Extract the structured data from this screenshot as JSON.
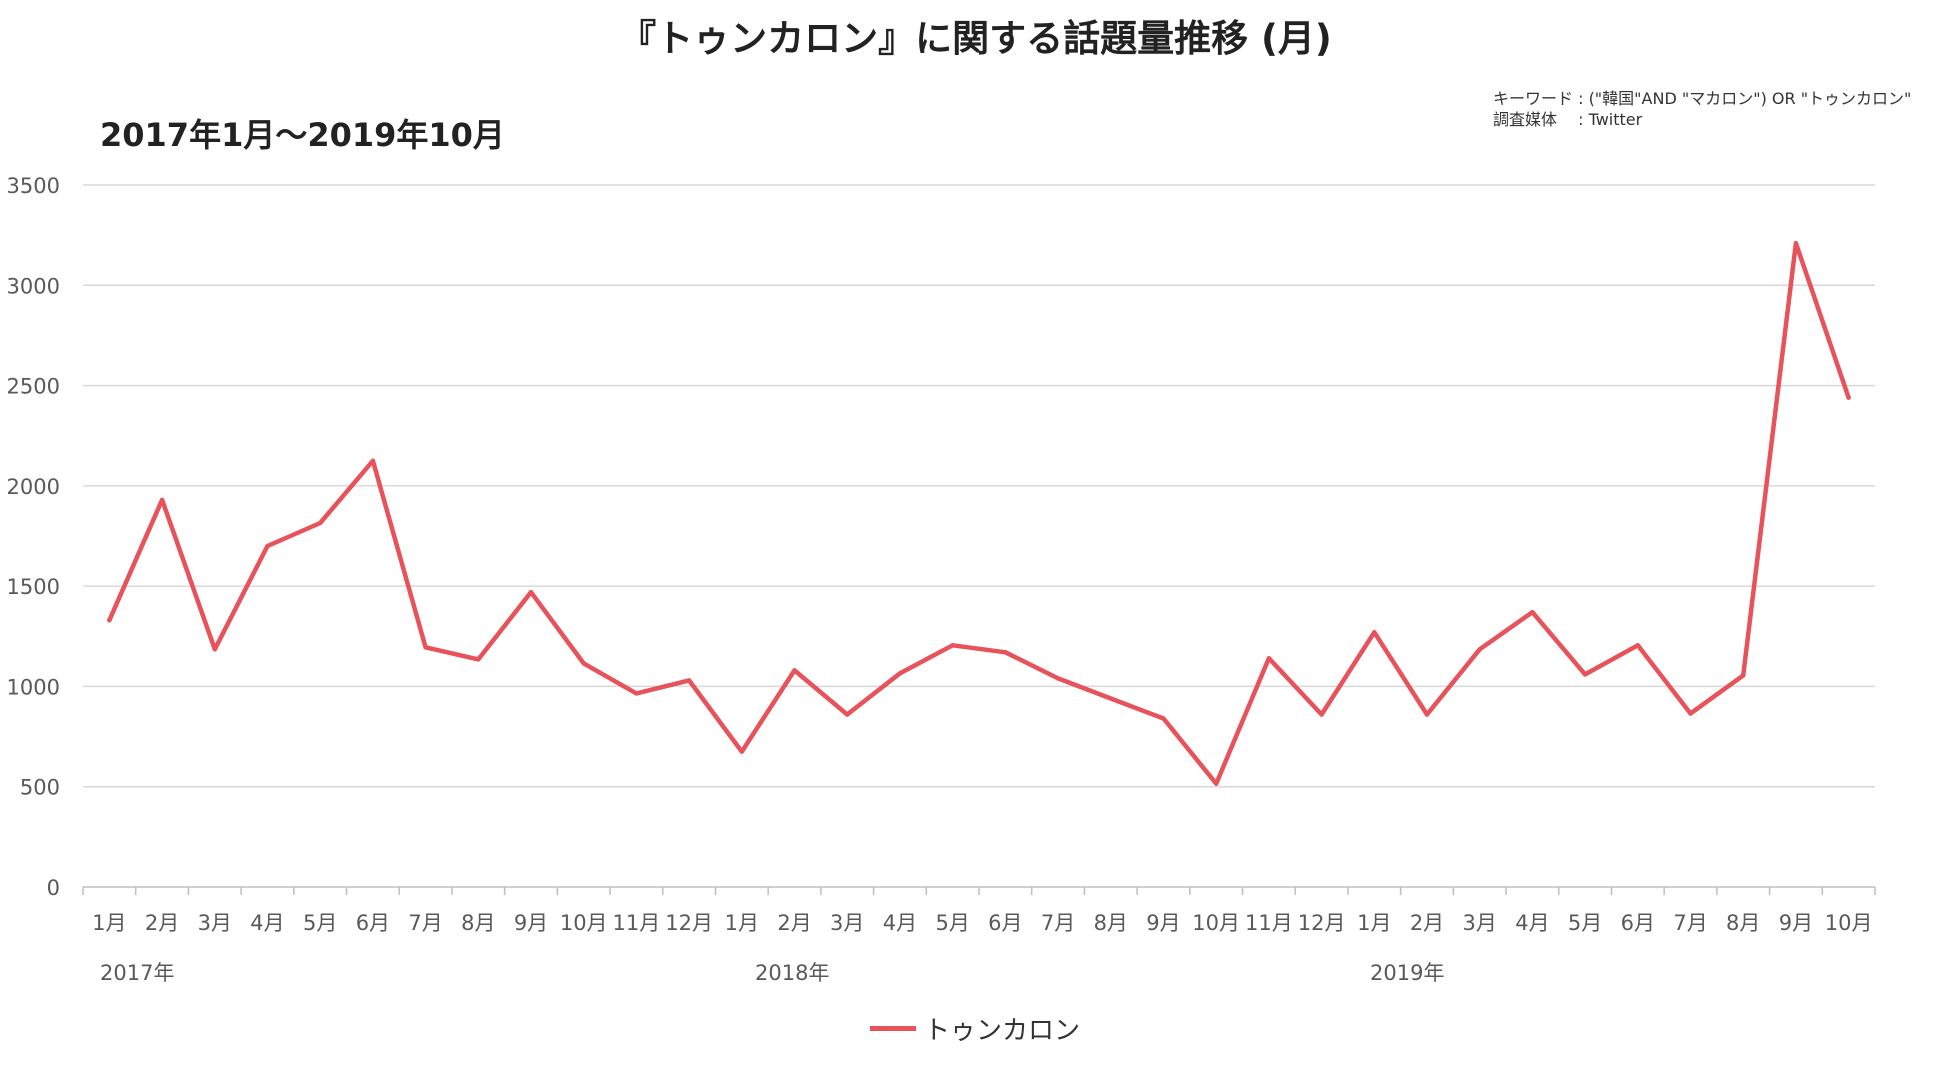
{
  "title": "『トゥンカロン』に関する話題量推移 (月)",
  "subtitle": "2017年1月～2019年10月",
  "keyword_line1": "キーワード : (\"韓国\"AND \"マカロン\") OR \"トゥンカロン\"",
  "keyword_line2": "調査媒体　 : Twitter",
  "colors": {
    "line": "#e8525a",
    "grid": "#d9d9d9",
    "axis": "#bfbfbf",
    "text": "#595959"
  },
  "chart_data": {
    "type": "line",
    "categories": [
      "1月",
      "2月",
      "3月",
      "4月",
      "5月",
      "6月",
      "7月",
      "8月",
      "9月",
      "10月",
      "11月",
      "12月",
      "1月",
      "2月",
      "3月",
      "4月",
      "5月",
      "6月",
      "7月",
      "8月",
      "9月",
      "10月",
      "11月",
      "12月",
      "1月",
      "2月",
      "3月",
      "4月",
      "5月",
      "6月",
      "7月",
      "8月",
      "9月",
      "10月"
    ],
    "year_labels": [
      {
        "label": "2017年",
        "index": 0
      },
      {
        "label": "2018年",
        "index": 12
      },
      {
        "label": "2019年",
        "index": 24
      }
    ],
    "series": [
      {
        "name": "トゥンカロン",
        "values": [
          1330,
          1930,
          1185,
          1700,
          1815,
          2125,
          1195,
          1135,
          1470,
          1115,
          965,
          1030,
          675,
          1080,
          860,
          1065,
          1205,
          1170,
          1040,
          940,
          840,
          515,
          1140,
          860,
          1270,
          860,
          1185,
          1370,
          1060,
          1205,
          865,
          1055,
          3210,
          2440
        ]
      }
    ],
    "ylim": [
      0,
      3500
    ],
    "yticks": [
      0,
      500,
      1000,
      1500,
      2000,
      2500,
      3000,
      3500
    ],
    "grid": true,
    "legend": "bottom"
  }
}
